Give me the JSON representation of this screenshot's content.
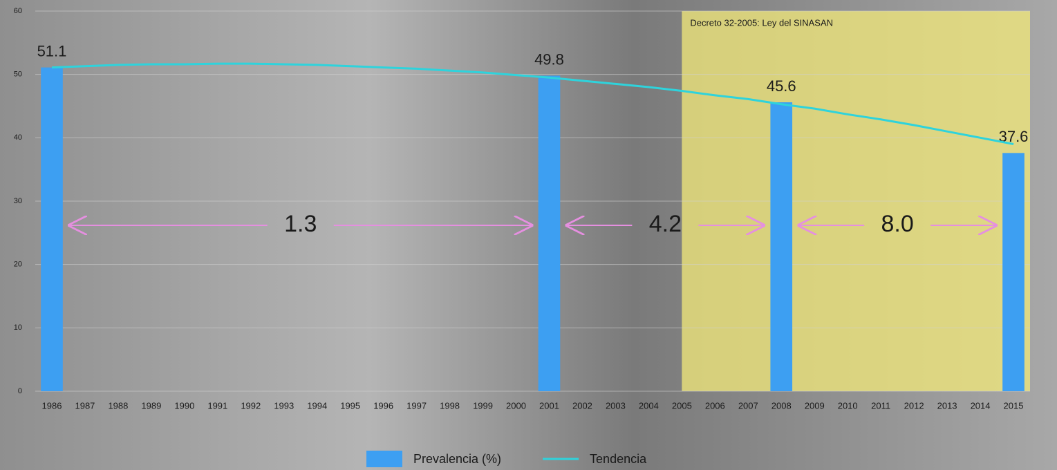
{
  "chart_data": {
    "type": "bar",
    "categories": [
      "1986",
      "1987",
      "1988",
      "1989",
      "1990",
      "1991",
      "1992",
      "1993",
      "1994",
      "1995",
      "1996",
      "1997",
      "1998",
      "1999",
      "2000",
      "2001",
      "2002",
      "2003",
      "2004",
      "2005",
      "2006",
      "2007",
      "2008",
      "2009",
      "2010",
      "2011",
      "2012",
      "2013",
      "2014",
      "2015"
    ],
    "series": [
      {
        "name": "Prevalencia (%)",
        "color": "#3d9ff2",
        "values": [
          51.1,
          null,
          null,
          null,
          null,
          null,
          null,
          null,
          null,
          null,
          null,
          null,
          null,
          null,
          null,
          49.8,
          null,
          null,
          null,
          null,
          null,
          null,
          45.6,
          null,
          null,
          null,
          null,
          null,
          null,
          37.6
        ]
      },
      {
        "name": "Tendencia",
        "color": "#2ed3dc",
        "type": "line",
        "values": [
          51.1,
          51.3,
          51.5,
          51.6,
          51.6,
          51.7,
          51.7,
          51.6,
          51.5,
          51.3,
          51.1,
          50.9,
          50.6,
          50.3,
          49.9,
          49.5,
          49.0,
          48.5,
          48.0,
          47.4,
          46.7,
          46.1,
          45.3,
          44.6,
          43.7,
          42.9,
          42.0,
          41.0,
          40.0,
          39.0
        ]
      }
    ],
    "annotations": [
      "1.3",
      "4.2",
      "8.0"
    ],
    "highlight": {
      "text": "Decreto 32-2005: Ley del SINASAN",
      "start": "2005",
      "end": "2015",
      "color": "#f3ea7a"
    },
    "ylim": [
      0,
      60
    ],
    "yticks": [
      0,
      10,
      20,
      30,
      40,
      50,
      60
    ],
    "grid": true
  }
}
